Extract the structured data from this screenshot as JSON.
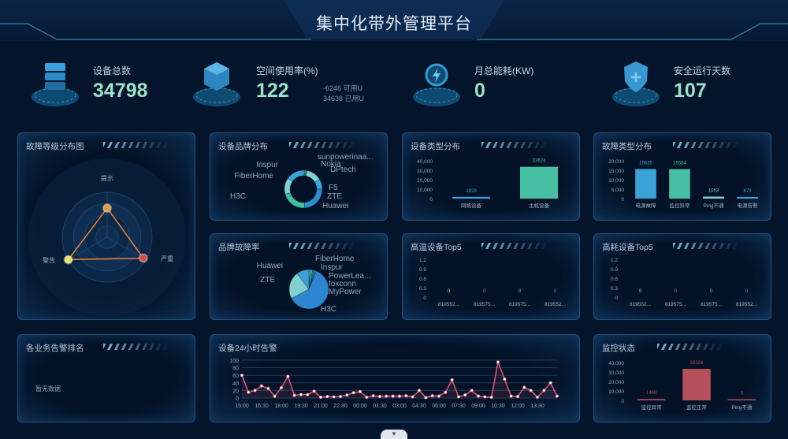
{
  "header": {
    "title": "集中化带外管理平台"
  },
  "stats": [
    {
      "label": "设备总数",
      "value": "34798",
      "icon": "server-icon"
    },
    {
      "label": "空间使用率(%)",
      "value": "122",
      "icon": "cube-icon",
      "sub": [
        "-6246 可用U",
        "34638 已用U"
      ]
    },
    {
      "label": "月总能耗(KW)",
      "value": "0",
      "icon": "power-icon"
    },
    {
      "label": "安全运行天数",
      "value": "107",
      "icon": "shield-icon"
    }
  ],
  "panels": {
    "fault_level": {
      "title": "故障等级分布图"
    },
    "brand_dist": {
      "title": "设备品牌分布"
    },
    "type_dist": {
      "title": "设备类型分布"
    },
    "fault_type": {
      "title": "故障类型分布"
    },
    "brand_fault": {
      "title": "品牌故障率"
    },
    "high_temp": {
      "title": "高温设备Top5"
    },
    "high_power": {
      "title": "高耗设备Top5"
    },
    "biz_alarm": {
      "title": "各业务告警排名",
      "empty": "暂无数据"
    },
    "alarm24": {
      "title": "设备24小时告警"
    },
    "monitor": {
      "title": "监控状态"
    }
  },
  "chart_data": [
    {
      "id": "fault_level",
      "type": "radar",
      "indicators": [
        "提示",
        "警告",
        "严重"
      ],
      "values": [
        65,
        100,
        93
      ],
      "max": 100,
      "colors": [
        "#e8963a",
        "#e6e46a",
        "#d9494a"
      ]
    },
    {
      "id": "brand_dist",
      "type": "pie",
      "donut": true,
      "categories": [
        "sunpowerinaa...",
        "Nokia",
        "DPtech",
        "F5",
        "ZTE",
        "Huawei",
        "H3C",
        "FiberHome",
        "Inspur"
      ],
      "values": [
        1,
        1,
        1,
        12,
        8,
        22,
        20,
        13,
        14
      ],
      "colors": [
        "#5fc9c0",
        "#3fb88e",
        "#3aa2d6",
        "#7fd0cf",
        "#36a8d8",
        "#2d8fd0",
        "#3fbf9a",
        "#7fd0cf",
        "#3aa2d6"
      ]
    },
    {
      "id": "type_dist",
      "type": "bar",
      "categories": [
        "网络设备",
        "主机设备"
      ],
      "values": [
        1829,
        33624
      ],
      "ylim": [
        0,
        40000
      ],
      "ticks": [
        "0",
        "10,000",
        "20,000",
        "30,000",
        "40,000"
      ],
      "colors": [
        "#3aa2d6",
        "#47bfa3"
      ]
    },
    {
      "id": "fault_type",
      "type": "bar",
      "categories": [
        "电源故障",
        "监控异常",
        "Ping不通",
        "电源告警"
      ],
      "values": [
        15635,
        15584,
        1053,
        873
      ],
      "ylim": [
        0,
        20000
      ],
      "ticks": [
        "0",
        "5,000",
        "10,000",
        "15,000",
        "20,000"
      ],
      "colors": [
        "#3aa2d6",
        "#47bfa3",
        "#7fd0cf",
        "#3aa2d6"
      ]
    },
    {
      "id": "brand_fault",
      "type": "pie",
      "donut": false,
      "categories": [
        "FiberHome",
        "Inspur",
        "PowerLea...",
        "foxconn",
        "MyPower",
        "H3C",
        "ZTE",
        "Huawei"
      ],
      "values": [
        1,
        2,
        1,
        1,
        1,
        60,
        22,
        10
      ],
      "colors": [
        "#5fc9c0",
        "#3fb88e",
        "#2d8fd0",
        "#3aa2d6",
        "#2f7fc9",
        "#2f86d0",
        "#7fd0cf",
        "#3aa2d6"
      ]
    },
    {
      "id": "high_temp",
      "type": "bar",
      "categories": [
        "819552...",
        "819575...",
        "819575...",
        "819552..."
      ],
      "values": [
        0,
        0,
        0,
        0
      ],
      "ylim": [
        0,
        1.2
      ],
      "ticks": [
        "0",
        "0.3",
        "0.6",
        "0.9",
        "1.2"
      ],
      "colors": [
        "#d8d36a",
        "#d26a7c",
        "#6fcfc0",
        "#3aa2d6"
      ]
    },
    {
      "id": "high_power",
      "type": "bar",
      "categories": [
        "819552...",
        "819575...",
        "819575...",
        "819552..."
      ],
      "values": [
        0,
        0,
        0,
        0
      ],
      "ylim": [
        0,
        1.2
      ],
      "ticks": [
        "0",
        "0.3",
        "0.6",
        "0.9",
        "1.2"
      ],
      "colors": [
        "#d8d36a",
        "#d26a7c",
        "#6fcfc0",
        "#3aa2d6"
      ]
    },
    {
      "id": "alarm24",
      "type": "line",
      "x": [
        "15:00",
        "15:30",
        "16:00",
        "16:30",
        "17:00",
        "17:30",
        "18:00",
        "18:30",
        "19:00",
        "19:30",
        "20:00",
        "20:30",
        "21:00",
        "21:30",
        "22:00",
        "22:30",
        "23:00",
        "23:30",
        "00:00",
        "00:30",
        "01:00",
        "01:30",
        "02:00",
        "02:30",
        "03:00",
        "03:30",
        "04:00",
        "04:30",
        "05:00",
        "05:30",
        "06:00",
        "06:30",
        "07:00",
        "07:30",
        "08:00",
        "08:30",
        "09:00",
        "09:30",
        "10:00",
        "10:30",
        "11:00",
        "11:30",
        "12:00",
        "12:30",
        "13:00",
        "13:30",
        "14:00",
        "14:30",
        "15:00"
      ],
      "values": [
        60,
        15,
        20,
        32,
        25,
        5,
        27,
        57,
        7,
        9,
        9,
        18,
        2,
        4,
        3,
        4,
        8,
        14,
        17,
        2,
        6,
        4,
        5,
        5,
        5,
        6,
        3,
        20,
        1,
        6,
        5,
        15,
        48,
        3,
        8,
        20,
        5,
        3,
        2,
        95,
        50,
        5,
        4,
        28,
        20,
        2,
        20,
        40,
        5
      ],
      "xticks": [
        "15:00",
        "16:30",
        "18:00",
        "19:30",
        "21:00",
        "22:30",
        "00:00",
        "01:30",
        "03:00",
        "04:30",
        "06:00",
        "07:30",
        "09:00",
        "10:30",
        "12:00",
        "13:30"
      ],
      "ylim": [
        0,
        100
      ],
      "ticks": [
        "0",
        "20",
        "40",
        "60",
        "80",
        "100"
      ],
      "color": "#e05a74"
    },
    {
      "id": "monitor",
      "type": "bar",
      "categories": [
        "监控异常",
        "监控正常",
        "Ping不通"
      ],
      "values": [
        1469,
        33326,
        3
      ],
      "ylim": [
        0,
        40000
      ],
      "ticks": [
        "0",
        "10,000",
        "20,000",
        "30,000",
        "40,000"
      ],
      "colors": [
        "#b5505c",
        "#b5505c",
        "#b5505c"
      ]
    }
  ]
}
